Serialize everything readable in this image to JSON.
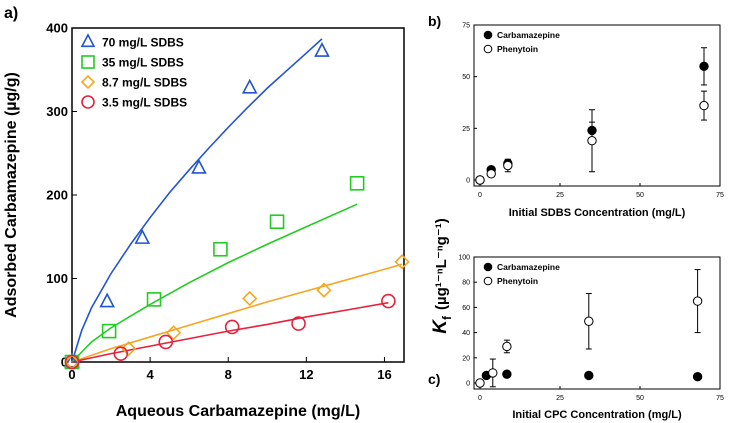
{
  "panel_labels": {
    "a": "a)",
    "b": "b)",
    "c": "c)"
  },
  "shared_ylabel": {
    "prefix": "K",
    "subscript": "f",
    "units": "(µg¹⁻ⁿL⁻ⁿg⁻¹)"
  },
  "colors": {
    "blue": "#2255cc",
    "green": "#22cc22",
    "orange": "#f5a623",
    "red": "#e8203c",
    "black": "#000000"
  },
  "chart_data": [
    {
      "id": "a",
      "type": "scatter",
      "xlabel": "Aqueous Carbamazepine (mg/L)",
      "ylabel": "Adsorbed Carbamazepine (µg/g)",
      "xlim": [
        0,
        17
      ],
      "ylim": [
        0,
        400
      ],
      "xticks": [
        0,
        4,
        8,
        12,
        16
      ],
      "yticks": [
        0,
        100,
        200,
        300,
        400
      ],
      "legend_position": "top-left",
      "series": [
        {
          "name": "70 mg/L SDBS",
          "marker": "triangle",
          "color": "#2255cc",
          "x": [
            0,
            1.8,
            3.6,
            6.5,
            9.1,
            12.8
          ],
          "y": [
            0,
            72,
            148,
            232,
            328,
            372
          ],
          "fit_x": [
            0,
            0.5,
            1,
            2,
            3,
            4,
            5,
            6,
            7,
            8,
            9,
            10,
            11,
            12,
            12.8
          ],
          "fit_y": [
            0,
            38,
            65,
            106,
            141,
            173,
            203,
            230,
            256,
            281,
            305,
            328,
            349,
            370,
            387
          ]
        },
        {
          "name": "35 mg/L SDBS",
          "marker": "square",
          "color": "#22cc22",
          "x": [
            0,
            1.9,
            4.2,
            7.6,
            10.5,
            14.6
          ],
          "y": [
            0,
            37,
            75,
            135,
            168,
            214
          ],
          "fit_x": [
            0,
            1,
            2,
            4,
            6,
            8,
            10,
            12,
            14.6
          ],
          "fit_y": [
            0,
            24,
            41,
            69,
            95,
            119,
            141,
            162,
            189
          ]
        },
        {
          "name": "8.7 mg/L SDBS",
          "marker": "diamond",
          "color": "#f5a623",
          "x": [
            0,
            2.9,
            5.2,
            9.1,
            12.9,
            16.9
          ],
          "y": [
            0,
            16,
            35,
            76,
            86,
            120
          ],
          "fit_x": [
            0,
            2,
            4,
            6,
            8,
            10,
            12,
            14,
            16.9
          ],
          "fit_y": [
            0,
            16,
            30,
            44,
            58,
            72,
            85,
            98,
            117
          ]
        },
        {
          "name": "3.5 mg/L SDBS",
          "marker": "circle",
          "color": "#e8203c",
          "x": [
            0,
            2.5,
            4.8,
            8.2,
            11.6,
            16.2
          ],
          "y": [
            0,
            10,
            24,
            42,
            46,
            73
          ],
          "fit_x": [
            0,
            2,
            4,
            6,
            8,
            10,
            12,
            14,
            16.2
          ],
          "fit_y": [
            0,
            10,
            19,
            28,
            37,
            45,
            54,
            62,
            71
          ]
        }
      ]
    },
    {
      "id": "b",
      "type": "scatter",
      "xlabel": "Initial SDBS Concentration (mg/L)",
      "ylabel": "",
      "xlim": [
        0,
        75
      ],
      "ylim": [
        0,
        75
      ],
      "xticks": [
        0,
        25,
        50,
        75
      ],
      "yticks": [
        0,
        25,
        50,
        75
      ],
      "legend_position": "top-left",
      "series": [
        {
          "name": "Carbamazepine",
          "marker": "filled-circle",
          "x": [
            0,
            3.5,
            8.7,
            35,
            70
          ],
          "y": [
            0,
            5,
            8,
            24,
            55
          ],
          "err": [
            0,
            1,
            2,
            4,
            9
          ]
        },
        {
          "name": "Phenytoin",
          "marker": "open-circle",
          "x": [
            0,
            3.5,
            8.7,
            35,
            70
          ],
          "y": [
            0,
            3,
            7,
            19,
            36
          ],
          "err": [
            0,
            1,
            3,
            15,
            7
          ]
        }
      ]
    },
    {
      "id": "c",
      "type": "scatter",
      "xlabel": "Initial CPC Concentration (mg/L)",
      "ylabel": "",
      "xlim": [
        0,
        75
      ],
      "ylim": [
        0,
        100
      ],
      "xticks": [
        0,
        25,
        50,
        75
      ],
      "yticks": [
        0,
        20,
        40,
        60,
        80,
        100
      ],
      "legend_position": "top-left",
      "series": [
        {
          "name": "Carbamazepine",
          "marker": "filled-circle",
          "x": [
            2,
            8.4,
            34,
            68
          ],
          "y": [
            6,
            7,
            6,
            5
          ],
          "err": [
            0,
            0,
            0,
            0
          ]
        },
        {
          "name": "Phenytoin",
          "marker": "open-circle",
          "x": [
            0,
            4,
            8.4,
            34,
            68
          ],
          "y": [
            0,
            8,
            29,
            49,
            65
          ],
          "err": [
            0,
            11,
            5,
            22,
            25
          ]
        }
      ]
    }
  ]
}
